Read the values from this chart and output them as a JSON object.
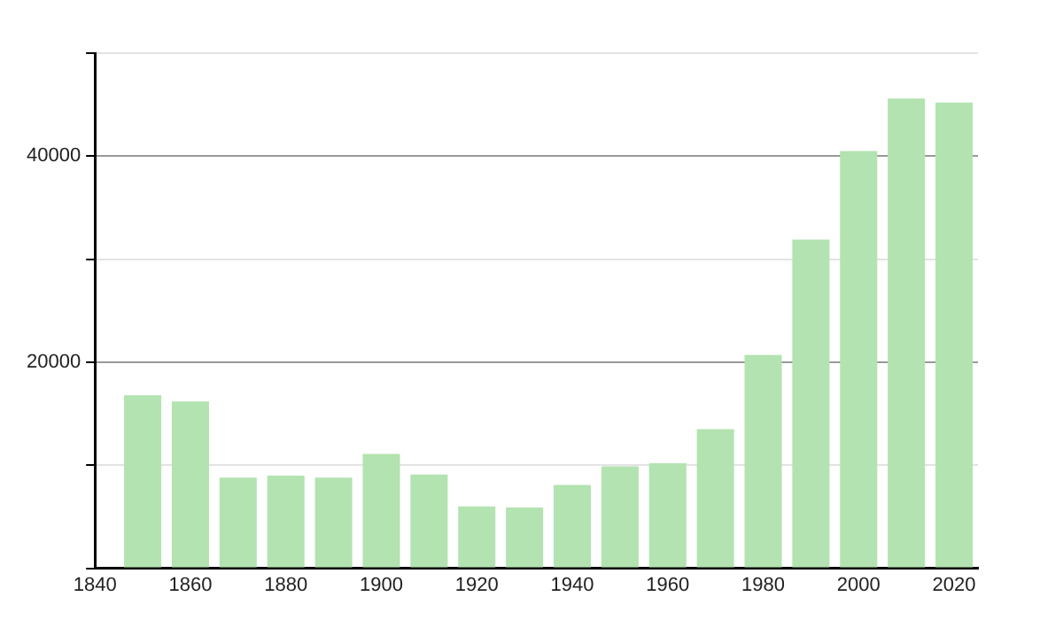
{
  "chart_data": {
    "type": "bar",
    "x": [
      1850,
      1860,
      1870,
      1880,
      1890,
      1900,
      1910,
      1920,
      1930,
      1940,
      1950,
      1960,
      1970,
      1980,
      1990,
      2000,
      2010,
      2020
    ],
    "values": [
      16800,
      16200,
      8800,
      9000,
      8800,
      11100,
      9100,
      6000,
      5900,
      8100,
      9900,
      10200,
      13500,
      20700,
      31900,
      40500,
      45600,
      45200
    ],
    "color": "#b3e3b0",
    "xlim": [
      1840,
      2025
    ],
    "xticks": [
      1840,
      1860,
      1880,
      1900,
      1920,
      1940,
      1960,
      1980,
      2000,
      2020
    ],
    "ylim": [
      0,
      50000
    ],
    "yticks": [
      {
        "value": 0,
        "label": null
      },
      {
        "value": 10000,
        "label": null
      },
      20000,
      {
        "value": 30000,
        "label": null
      },
      40000,
      {
        "value": 50000,
        "label": null
      }
    ],
    "grid": "y"
  }
}
